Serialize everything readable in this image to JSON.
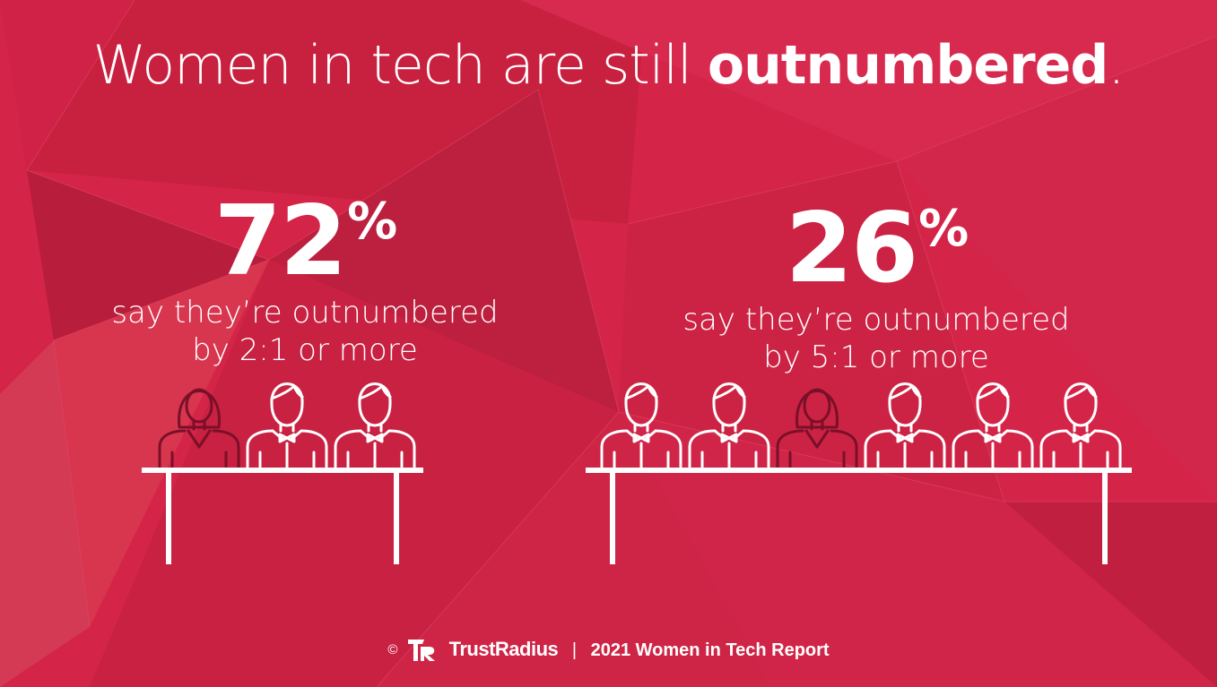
{
  "headline": {
    "light": "Women in tech are still ",
    "bold": "outnumbered",
    "end": "."
  },
  "stats": [
    {
      "value": "72",
      "unit": "%",
      "line1": "say they’re outnumbered",
      "line2": "by 2:1 or more"
    },
    {
      "value": "26",
      "unit": "%",
      "line1": "say they’re outnumbered",
      "line2": "by 5:1 or more"
    }
  ],
  "tables": [
    {
      "people": [
        "woman",
        "man",
        "man"
      ]
    },
    {
      "people": [
        "man",
        "man",
        "woman",
        "man",
        "man",
        "man"
      ]
    }
  ],
  "footer": {
    "copyright": "©",
    "brand": "TrustRadius",
    "separator": "|",
    "report": "2021 Women in Tech Report"
  },
  "colors": {
    "background": "#d42448",
    "icon_man": "#ffffff",
    "icon_woman": "#7a1028",
    "text": "#ffffff"
  }
}
